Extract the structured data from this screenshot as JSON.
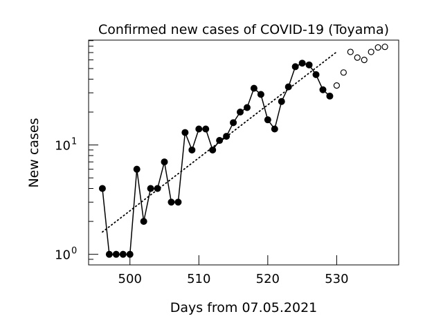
{
  "chart_data": {
    "type": "scatter",
    "title": "Confirmed new cases of COVID-19 (Toyama)",
    "xlabel": "Days from 07.05.2021",
    "ylabel": "New cases",
    "yscale": "log",
    "xlim": [
      494.0,
      539.0
    ],
    "ylim": [
      0.8,
      91
    ],
    "xticks": [
      500,
      510,
      520,
      530
    ],
    "yticks": [
      {
        "value": 1,
        "base": "10",
        "exp": "0"
      },
      {
        "value": 10,
        "base": "10",
        "exp": "1"
      }
    ],
    "grid": false,
    "observed": {
      "style": "filled-markers-with-line",
      "x": [
        496,
        497,
        498,
        499,
        500,
        501,
        502,
        503,
        504,
        505,
        506,
        507,
        508,
        509,
        510,
        511,
        512,
        513,
        514,
        515,
        516,
        517,
        518,
        519,
        520,
        521,
        522,
        523,
        524,
        525,
        526,
        527,
        528,
        529
      ],
      "y": [
        4,
        1,
        1,
        1,
        1,
        6,
        2,
        4,
        4,
        7,
        3,
        3,
        13,
        9,
        14,
        14,
        9,
        11,
        12,
        16,
        20,
        22,
        33,
        29,
        17,
        14,
        25,
        34,
        52,
        56,
        54,
        44,
        32,
        28
      ]
    },
    "projected": {
      "style": "open-markers",
      "x": [
        530,
        531,
        532,
        533,
        534,
        535,
        536,
        537
      ],
      "y": [
        35,
        46,
        71,
        63,
        60,
        71,
        78,
        79
      ]
    },
    "trend": {
      "style": "dotted-line",
      "x": [
        496,
        530
      ],
      "y": [
        1.6,
        71
      ]
    }
  }
}
